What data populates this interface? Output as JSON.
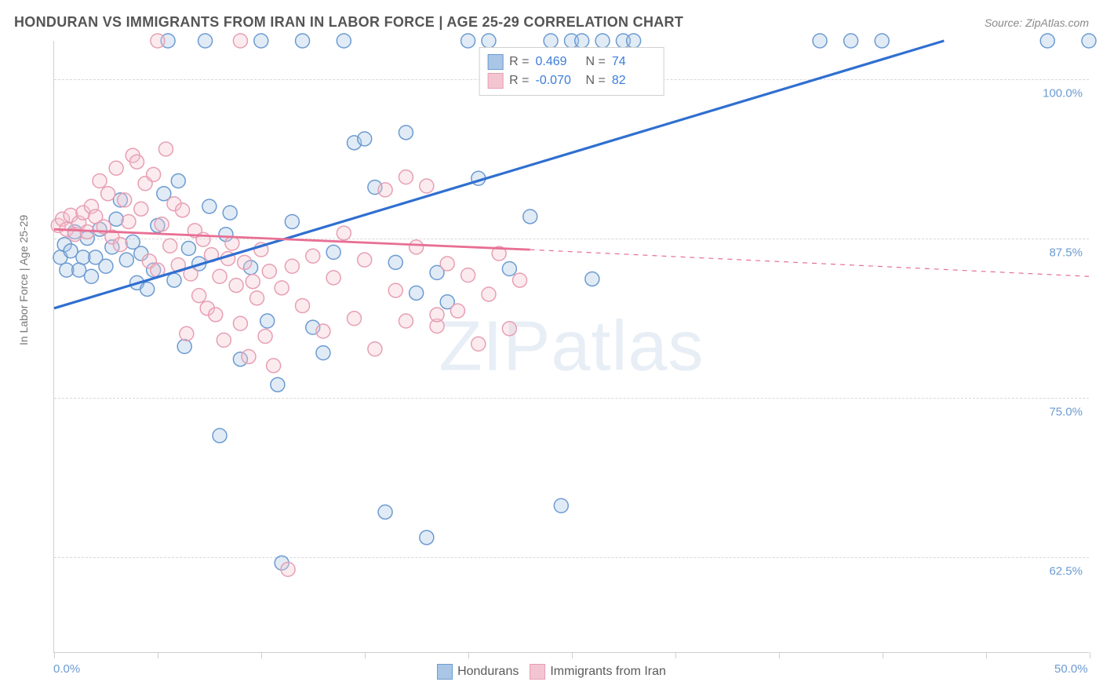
{
  "title": "HONDURAN VS IMMIGRANTS FROM IRAN IN LABOR FORCE | AGE 25-29 CORRELATION CHART",
  "source": "Source: ZipAtlas.com",
  "y_axis_label": "In Labor Force | Age 25-29",
  "watermark_a": "ZIP",
  "watermark_b": "atlas",
  "chart": {
    "type": "scatter",
    "xlim": [
      0,
      50
    ],
    "ylim": [
      55,
      103
    ],
    "y_ticks": [
      62.5,
      75.0,
      87.5,
      100.0
    ],
    "y_tick_labels": [
      "62.5%",
      "75.0%",
      "87.5%",
      "100.0%"
    ],
    "x_ticks": [
      0,
      5,
      10,
      15,
      20,
      25,
      30,
      35,
      40,
      45,
      50
    ],
    "x_tick_labels_shown": {
      "0": "0.0%",
      "50": "50.0%"
    },
    "background_color": "#ffffff",
    "grid_color": "#d8d8d8",
    "marker_radius": 9,
    "marker_fill_opacity": 0.35,
    "series": [
      {
        "name": "Hondurans",
        "color_stroke": "#6c9bd1",
        "color_fill": "#a9c6e6",
        "R": "0.469",
        "N": "74",
        "trend": {
          "x1": 0,
          "y1": 82,
          "x2": 43,
          "y2": 103,
          "dash_after_x": 50
        },
        "points": [
          [
            0.3,
            86
          ],
          [
            0.5,
            87
          ],
          [
            0.6,
            85
          ],
          [
            0.8,
            86.5
          ],
          [
            1.0,
            88
          ],
          [
            1.2,
            85
          ],
          [
            1.4,
            86
          ],
          [
            1.6,
            87.5
          ],
          [
            1.8,
            84.5
          ],
          [
            2.0,
            86
          ],
          [
            2.2,
            88.2
          ],
          [
            2.5,
            85.3
          ],
          [
            2.8,
            86.8
          ],
          [
            3.0,
            89
          ],
          [
            3.2,
            90.5
          ],
          [
            3.5,
            85.8
          ],
          [
            3.8,
            87.2
          ],
          [
            4.0,
            84
          ],
          [
            4.2,
            86.3
          ],
          [
            4.5,
            83.5
          ],
          [
            4.8,
            85
          ],
          [
            5.0,
            88.5
          ],
          [
            5.3,
            91
          ],
          [
            5.5,
            103
          ],
          [
            5.8,
            84.2
          ],
          [
            6.0,
            92
          ],
          [
            6.3,
            79
          ],
          [
            6.5,
            86.7
          ],
          [
            7.0,
            85.5
          ],
          [
            7.3,
            103
          ],
          [
            7.5,
            90
          ],
          [
            8.0,
            72
          ],
          [
            8.3,
            87.8
          ],
          [
            8.5,
            89.5
          ],
          [
            9.0,
            78
          ],
          [
            9.5,
            85.2
          ],
          [
            10.0,
            103
          ],
          [
            10.3,
            81
          ],
          [
            10.8,
            76
          ],
          [
            11.0,
            62
          ],
          [
            11.5,
            88.8
          ],
          [
            12.0,
            103
          ],
          [
            12.5,
            80.5
          ],
          [
            13.0,
            78.5
          ],
          [
            13.5,
            86.4
          ],
          [
            14.0,
            103
          ],
          [
            14.5,
            95
          ],
          [
            15.0,
            95.3
          ],
          [
            15.5,
            91.5
          ],
          [
            16.0,
            66
          ],
          [
            16.5,
            85.6
          ],
          [
            17.0,
            95.8
          ],
          [
            17.5,
            83.2
          ],
          [
            18.0,
            64
          ],
          [
            18.5,
            84.8
          ],
          [
            19.0,
            82.5
          ],
          [
            20.0,
            103
          ],
          [
            20.5,
            92.2
          ],
          [
            21.0,
            103
          ],
          [
            22.0,
            85.1
          ],
          [
            23.0,
            89.2
          ],
          [
            24.0,
            103
          ],
          [
            24.5,
            66.5
          ],
          [
            25.0,
            103
          ],
          [
            25.5,
            103
          ],
          [
            26.0,
            84.3
          ],
          [
            26.5,
            103
          ],
          [
            27.5,
            103
          ],
          [
            28.0,
            103
          ],
          [
            37.0,
            103
          ],
          [
            38.5,
            103
          ],
          [
            40.0,
            103
          ],
          [
            48.0,
            103
          ],
          [
            50.0,
            103
          ]
        ]
      },
      {
        "name": "Immigrants from Iran",
        "color_stroke": "#e79fb3",
        "color_fill": "#f3c5d1",
        "R": "-0.070",
        "N": "82",
        "trend": {
          "x1": 0,
          "y1": 88.2,
          "x2": 23,
          "y2": 86.6,
          "dash_after_x": 23,
          "dash_x2": 50,
          "dash_y2": 84.5
        },
        "points": [
          [
            0.2,
            88.5
          ],
          [
            0.4,
            89
          ],
          [
            0.6,
            88.2
          ],
          [
            0.8,
            89.3
          ],
          [
            1.0,
            87.8
          ],
          [
            1.2,
            88.7
          ],
          [
            1.4,
            89.5
          ],
          [
            1.6,
            88
          ],
          [
            1.8,
            90
          ],
          [
            2.0,
            89.2
          ],
          [
            2.2,
            92
          ],
          [
            2.4,
            88.4
          ],
          [
            2.6,
            91
          ],
          [
            2.8,
            87.6
          ],
          [
            3.0,
            93
          ],
          [
            3.2,
            87
          ],
          [
            3.4,
            90.5
          ],
          [
            3.6,
            88.8
          ],
          [
            3.8,
            94
          ],
          [
            4.0,
            93.5
          ],
          [
            4.2,
            89.8
          ],
          [
            4.4,
            91.8
          ],
          [
            4.6,
            85.7
          ],
          [
            4.8,
            92.5
          ],
          [
            5.0,
            103
          ],
          [
            5.2,
            88.6
          ],
          [
            5.4,
            94.5
          ],
          [
            5.0,
            85
          ],
          [
            5.6,
            86.9
          ],
          [
            5.8,
            90.2
          ],
          [
            6.0,
            85.4
          ],
          [
            6.2,
            89.7
          ],
          [
            6.4,
            80
          ],
          [
            6.6,
            84.7
          ],
          [
            6.8,
            88.1
          ],
          [
            7.0,
            83
          ],
          [
            7.2,
            87.4
          ],
          [
            7.4,
            82
          ],
          [
            7.6,
            86.2
          ],
          [
            7.8,
            81.5
          ],
          [
            8.0,
            84.5
          ],
          [
            8.2,
            79.5
          ],
          [
            8.4,
            85.9
          ],
          [
            8.6,
            87.1
          ],
          [
            8.8,
            83.8
          ],
          [
            9.0,
            80.8
          ],
          [
            9.2,
            85.6
          ],
          [
            9.4,
            78.2
          ],
          [
            9.6,
            84.1
          ],
          [
            9.8,
            82.8
          ],
          [
            10.0,
            86.6
          ],
          [
            10.2,
            79.8
          ],
          [
            10.4,
            84.9
          ],
          [
            10.6,
            77.5
          ],
          [
            11.0,
            83.6
          ],
          [
            11.3,
            61.5
          ],
          [
            11.5,
            85.3
          ],
          [
            12.0,
            82.2
          ],
          [
            12.5,
            86.1
          ],
          [
            13.0,
            80.2
          ],
          [
            13.5,
            84.4
          ],
          [
            14.0,
            87.9
          ],
          [
            14.5,
            81.2
          ],
          [
            15.0,
            85.8
          ],
          [
            15.5,
            78.8
          ],
          [
            16.0,
            91.3
          ],
          [
            16.5,
            83.4
          ],
          [
            17.0,
            92.3
          ],
          [
            17.5,
            86.8
          ],
          [
            18.0,
            91.6
          ],
          [
            18.5,
            80.6
          ],
          [
            19.0,
            85.5
          ],
          [
            19.5,
            81.8
          ],
          [
            20.0,
            84.6
          ],
          [
            20.5,
            79.2
          ],
          [
            21.0,
            83.1
          ],
          [
            21.5,
            86.3
          ],
          [
            22.0,
            80.4
          ],
          [
            22.5,
            84.2
          ],
          [
            9.0,
            103
          ],
          [
            17.0,
            81
          ],
          [
            18.5,
            81.5
          ]
        ]
      }
    ]
  },
  "legend": {
    "series1_label": "Hondurans",
    "series2_label": "Immigrants from Iran"
  },
  "stats_labels": {
    "R": "R =",
    "N": "N ="
  }
}
